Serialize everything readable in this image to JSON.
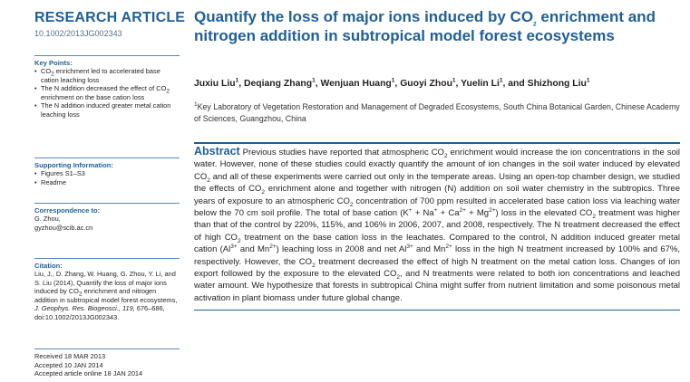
{
  "article_type": "RESEARCH ARTICLE",
  "doi": "10.1002/2013JG002343",
  "key_points": {
    "heading": "Key Points:",
    "items": [
      {
        "pre": "CO",
        "sub": "2",
        "post": " enrichment led to accelerated base cation leaching loss"
      },
      {
        "pre": "The N addition decreased the effect of CO",
        "sub": "2",
        "post": " enrichment on the base cation loss"
      },
      {
        "pre": "The N addition induced greater metal cation leaching loss",
        "sub": "",
        "post": ""
      }
    ]
  },
  "supporting": {
    "heading": "Supporting Information:",
    "items": [
      "Figures S1–S3",
      "Readme"
    ]
  },
  "correspondence": {
    "heading": "Correspondence to:",
    "name": "G. Zhou,",
    "email": "gyzhou@scib.ac.cn"
  },
  "citation": {
    "heading": "Citation:",
    "part1": "Liu, J., D. Zhang, W. Huang, G. Zhou, Y. Li, and S. Liu (2014), Quantify the loss of major ions induced by CO",
    "part1_sub": "2",
    "part2": " enrichment and nitrogen addition in subtropical model forest ecosystems, ",
    "journal": "J. Geophys. Res. Biogeosci., 119,",
    "part3": " 676–686, doi:10.1002/2013JG002343."
  },
  "dates": {
    "received": "Received 18 MAR 2013",
    "accepted": "Accepted 10 JAN 2014",
    "online": "Accepted article online 18 JAN 2014"
  },
  "title": {
    "part1": "Quantify the loss of major ions induced by CO",
    "sub": "2",
    "part2": " enrichment and nitrogen addition in subtropical model forest ecosystems"
  },
  "authors": [
    {
      "name": "Juxiu Liu",
      "sup": "1",
      "sep": ", "
    },
    {
      "name": "Deqiang Zhang",
      "sup": "1",
      "sep": ", "
    },
    {
      "name": "Wenjuan Huang",
      "sup": "1",
      "sep": ", "
    },
    {
      "name": "Guoyi Zhou",
      "sup": "1",
      "sep": ", "
    },
    {
      "name": "Yuelin Li",
      "sup": "1",
      "sep": ", and "
    },
    {
      "name": "Shizhong Liu",
      "sup": "1",
      "sep": ""
    }
  ],
  "affiliation": {
    "sup": "1",
    "text": "Key Laboratory of Vegetation Restoration and Management of Degraded Ecosystems, South China Botanical Garden, Chinese Academy of Sciences, Guangzhou, China"
  },
  "abstract": {
    "heading": "Abstract",
    "segments": [
      {
        "t": " Previous studies have reported that atmospheric CO"
      },
      {
        "sub": "2"
      },
      {
        "t": " enrichment would increase the ion concentrations in the soil water. However, none of these studies could exactly quantify the amount of ion changes in the soil water induced by elevated CO"
      },
      {
        "sub": "2"
      },
      {
        "t": " and all of these experiments were carried out only in the temperate areas. Using an open-top chamber design, we studied the effects of CO"
      },
      {
        "sub": "2"
      },
      {
        "t": " enrichment alone and together with nitrogen (N) addition on soil water chemistry in the subtropics. Three years of exposure to an atmospheric CO"
      },
      {
        "sub": "2"
      },
      {
        "t": " concentration of 700 ppm resulted in accelerated base cation loss via leaching water below the 70 cm soil profile. The total of base cation (K"
      },
      {
        "sup": "+"
      },
      {
        "t": " + Na"
      },
      {
        "sup": "+"
      },
      {
        "t": " + Ca"
      },
      {
        "sup": "2+"
      },
      {
        "t": " + Mg"
      },
      {
        "sup": "2+"
      },
      {
        "t": ") loss in the elevated CO"
      },
      {
        "sub": "2"
      },
      {
        "t": " treatment was higher than that of the control by 220%, 115%, and 106% in 2006, 2007, and 2008, respectively. The N treatment decreased the effect of high CO"
      },
      {
        "sub": "2"
      },
      {
        "t": " treatment on the base cation loss in the leachates. Compared to the control, N addition induced greater metal cation (Al"
      },
      {
        "sup": "3+"
      },
      {
        "t": " and Mn"
      },
      {
        "sup": "2+"
      },
      {
        "t": ") leaching loss in 2008 and net Al"
      },
      {
        "sup": "3+"
      },
      {
        "t": " and Mn"
      },
      {
        "sup": "2+"
      },
      {
        "t": " loss in the high N treatment increased by 100% and 67%, respectively. However, the CO"
      },
      {
        "sub": "2"
      },
      {
        "t": " treatment decreased the effect of high N treatment on the metal cation loss. Changes of ion export followed by the exposure to the elevated CO"
      },
      {
        "sub": "2"
      },
      {
        "t": ", and N treatments were related to both ion concentrations and leached water amount. We hypothesize that forests in subtropical China might suffer from nutrient limitation and some poisonous metal activation in plant biomass under future global change."
      }
    ]
  },
  "colors": {
    "accent": "#1f5f99",
    "text": "#231f20",
    "rule": "#5b88b5"
  }
}
